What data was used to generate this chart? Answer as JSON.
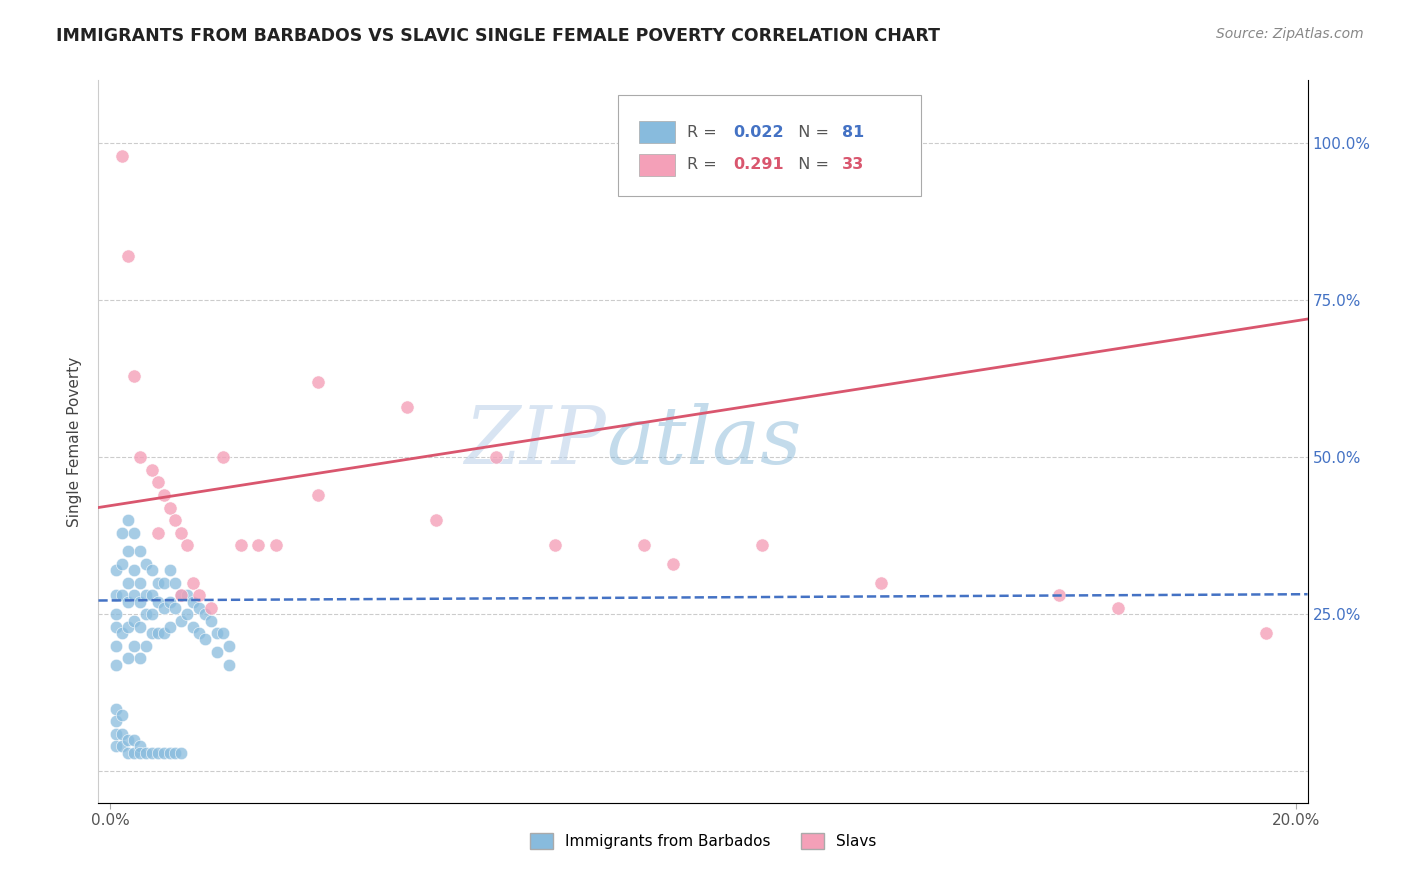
{
  "title": "IMMIGRANTS FROM BARBADOS VS SLAVIC SINGLE FEMALE POVERTY CORRELATION CHART",
  "source": "Source: ZipAtlas.com",
  "ylabel": "Single Female Poverty",
  "legend_labels": [
    "Immigrants from Barbados",
    "Slavs"
  ],
  "r_barbados": 0.022,
  "n_barbados": 81,
  "r_slavs": 0.291,
  "n_slavs": 33,
  "color_barbados": "#88bbdd",
  "color_slavs": "#f4a0b8",
  "trendline_barbados": "#4472c4",
  "trendline_slavs": "#d9566e",
  "watermark_zip": "ZIP",
  "watermark_atlas": "atlas",
  "xlim": [
    -0.002,
    0.202
  ],
  "ylim": [
    -0.05,
    1.1
  ],
  "x_ticks": [
    0.0,
    0.2
  ],
  "x_tick_labels": [
    "0.0%",
    "20.0%"
  ],
  "y_ticks": [
    0.0,
    0.25,
    0.5,
    0.75,
    1.0
  ],
  "y_tick_labels_right": [
    "",
    "25.0%",
    "50.0%",
    "75.0%",
    "100.0%"
  ],
  "barbados_x": [
    0.001,
    0.001,
    0.001,
    0.001,
    0.001,
    0.001,
    0.002,
    0.002,
    0.002,
    0.002,
    0.003,
    0.003,
    0.003,
    0.003,
    0.003,
    0.003,
    0.004,
    0.004,
    0.004,
    0.004,
    0.004,
    0.005,
    0.005,
    0.005,
    0.005,
    0.005,
    0.006,
    0.006,
    0.006,
    0.006,
    0.007,
    0.007,
    0.007,
    0.007,
    0.008,
    0.008,
    0.008,
    0.009,
    0.009,
    0.009,
    0.01,
    0.01,
    0.01,
    0.011,
    0.011,
    0.012,
    0.012,
    0.013,
    0.013,
    0.014,
    0.014,
    0.015,
    0.015,
    0.016,
    0.016,
    0.017,
    0.018,
    0.018,
    0.019,
    0.02,
    0.02,
    0.001,
    0.001,
    0.001,
    0.001,
    0.002,
    0.002,
    0.002,
    0.003,
    0.003,
    0.004,
    0.004,
    0.005,
    0.005,
    0.006,
    0.007,
    0.008,
    0.009,
    0.01,
    0.011,
    0.012
  ],
  "barbados_y": [
    0.32,
    0.28,
    0.25,
    0.23,
    0.2,
    0.17,
    0.38,
    0.33,
    0.28,
    0.22,
    0.4,
    0.35,
    0.3,
    0.27,
    0.23,
    0.18,
    0.38,
    0.32,
    0.28,
    0.24,
    0.2,
    0.35,
    0.3,
    0.27,
    0.23,
    0.18,
    0.33,
    0.28,
    0.25,
    0.2,
    0.32,
    0.28,
    0.25,
    0.22,
    0.3,
    0.27,
    0.22,
    0.3,
    0.26,
    0.22,
    0.32,
    0.27,
    0.23,
    0.3,
    0.26,
    0.28,
    0.24,
    0.28,
    0.25,
    0.27,
    0.23,
    0.26,
    0.22,
    0.25,
    0.21,
    0.24,
    0.22,
    0.19,
    0.22,
    0.2,
    0.17,
    0.1,
    0.08,
    0.06,
    0.04,
    0.09,
    0.06,
    0.04,
    0.05,
    0.03,
    0.05,
    0.03,
    0.04,
    0.03,
    0.03,
    0.03,
    0.03,
    0.03,
    0.03,
    0.03,
    0.03
  ],
  "slavs_x": [
    0.002,
    0.003,
    0.004,
    0.005,
    0.007,
    0.008,
    0.009,
    0.01,
    0.011,
    0.012,
    0.013,
    0.014,
    0.015,
    0.017,
    0.019,
    0.022,
    0.028,
    0.035,
    0.05,
    0.065,
    0.09,
    0.11,
    0.13,
    0.16,
    0.17,
    0.008,
    0.012,
    0.025,
    0.035,
    0.055,
    0.075,
    0.095,
    0.195
  ],
  "slavs_y": [
    0.98,
    0.82,
    0.63,
    0.5,
    0.48,
    0.46,
    0.44,
    0.42,
    0.4,
    0.38,
    0.36,
    0.3,
    0.28,
    0.26,
    0.5,
    0.36,
    0.36,
    0.62,
    0.58,
    0.5,
    0.36,
    0.36,
    0.3,
    0.28,
    0.26,
    0.38,
    0.28,
    0.36,
    0.44,
    0.4,
    0.36,
    0.33,
    0.22
  ],
  "trendline_barbados_y0": 0.272,
  "trendline_barbados_y1": 0.282,
  "trendline_slavs_y0": 0.42,
  "trendline_slavs_y1": 0.72
}
